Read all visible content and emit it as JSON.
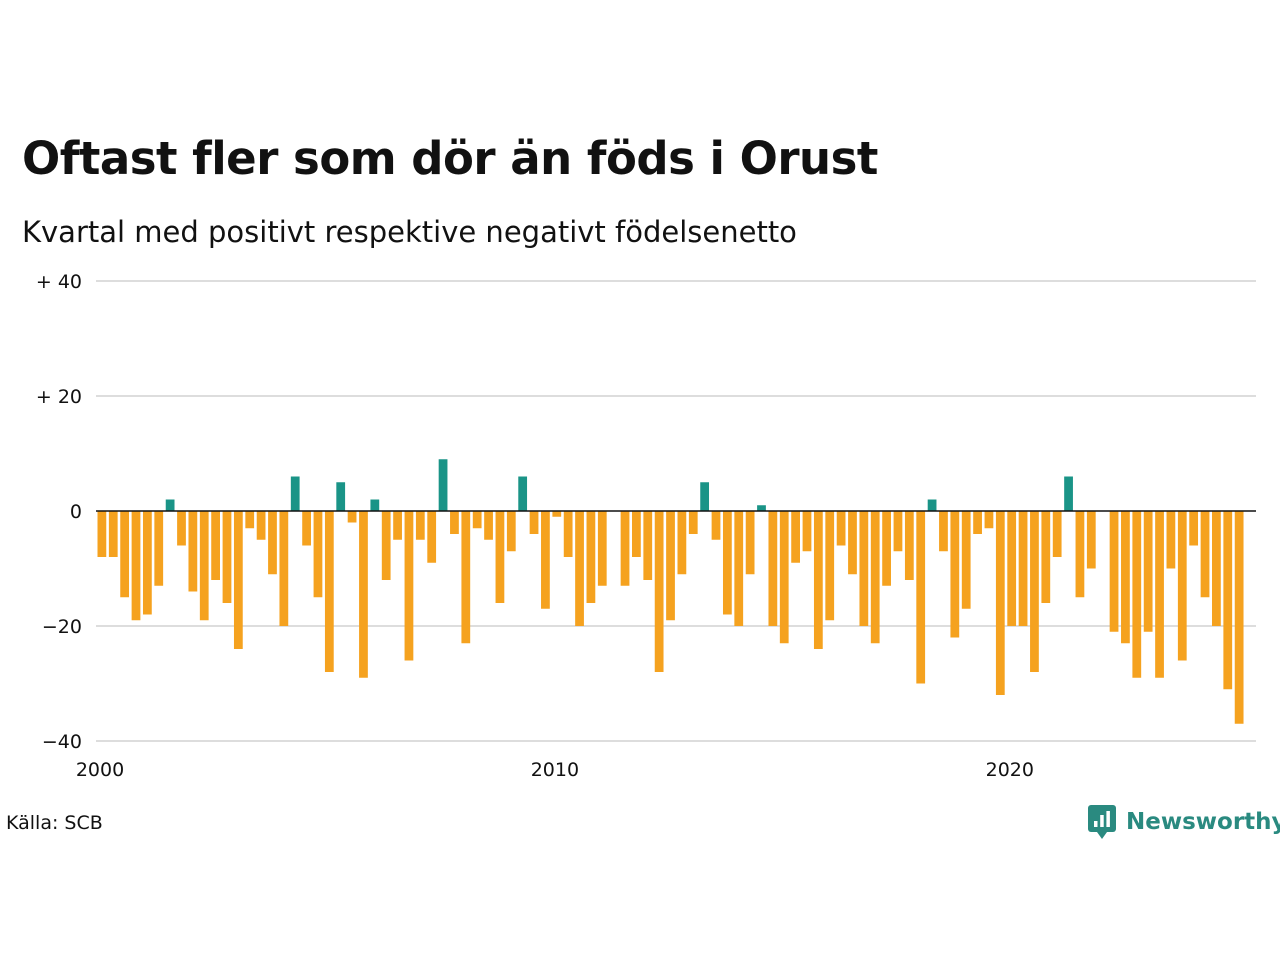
{
  "title": "Oftast fler som dör än föds i Orust",
  "subtitle": "Kvartal med positivt respektive negativt födelsenetto",
  "source": "Källa: SCB",
  "brand": {
    "name": "Newsworthy",
    "icon": "newsworthy-logo-icon"
  },
  "chart_data": {
    "type": "bar",
    "title": "Oftast fler som dör än föds i Orust",
    "subtitle": "Kvartal med positivt respektive negativt födelsenetto",
    "x_start": 2000.0,
    "x_step": 0.25,
    "xlim": [
      2000,
      2025.5
    ],
    "ylim": [
      -40,
      40
    ],
    "y_ticks": [
      40,
      20,
      0,
      -20,
      -40
    ],
    "y_tick_labels": [
      "+ 40",
      "+ 20",
      "0",
      "−20",
      "−40"
    ],
    "x_ticks": [
      2000,
      2010,
      2020
    ],
    "x_tick_labels": [
      "2000",
      "2010",
      "2020"
    ],
    "grid": true,
    "colors": {
      "positive": "#1a9487",
      "negative": "#f5a21f",
      "grid": "#dddddd",
      "zero_line": "#111111"
    },
    "values": [
      -8,
      -8,
      -15,
      -19,
      -18,
      -13,
      2,
      -6,
      -14,
      -19,
      -12,
      -16,
      -24,
      -3,
      -5,
      -11,
      -20,
      6,
      -6,
      -15,
      -28,
      5,
      -2,
      -29,
      2,
      -12,
      -5,
      -26,
      -5,
      -9,
      9,
      -4,
      -23,
      -3,
      -5,
      -16,
      -7,
      6,
      -4,
      -17,
      -1,
      -8,
      -20,
      -16,
      -13,
      0,
      -13,
      -8,
      -12,
      -28,
      -19,
      -11,
      -4,
      5,
      -5,
      -18,
      -20,
      -11,
      1,
      -20,
      -23,
      -9,
      -7,
      -24,
      -19,
      -6,
      -11,
      -20,
      -23,
      -13,
      -7,
      -12,
      -30,
      2,
      -7,
      -22,
      -17,
      -4,
      -3,
      -32,
      -20,
      -20,
      -28,
      -16,
      -8,
      6,
      -15,
      -10,
      0,
      -21,
      -23,
      -29,
      -21,
      -29,
      -10,
      -26,
      -6,
      -15,
      -20,
      -31,
      -37
    ]
  }
}
